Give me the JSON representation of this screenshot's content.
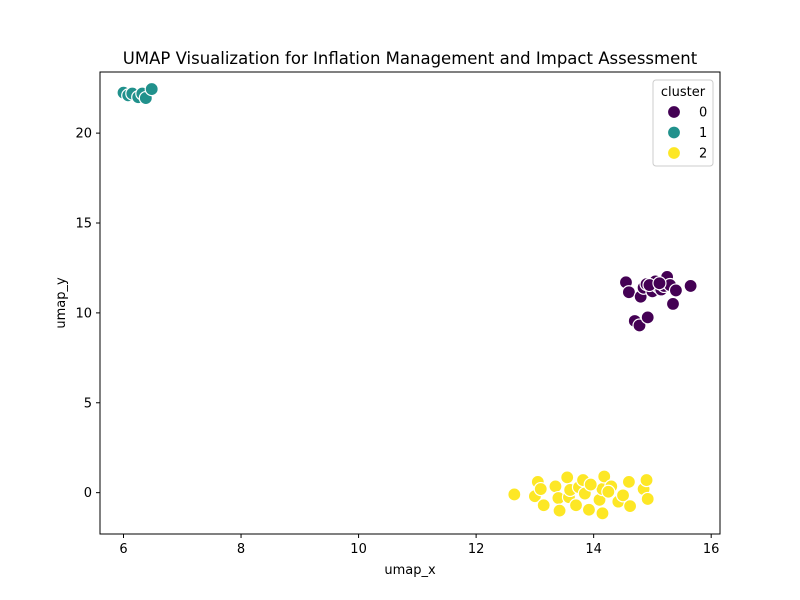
{
  "chart_data": {
    "type": "scatter",
    "title": "UMAP Visualization for Inflation Management and Impact Assessment",
    "xlabel": "umap_x",
    "ylabel": "umap_y",
    "xlim": [
      5.6,
      16.15
    ],
    "ylim": [
      -2.3,
      23.4
    ],
    "xticks": [
      6,
      8,
      10,
      12,
      14,
      16
    ],
    "yticks": [
      0,
      5,
      10,
      15,
      20
    ],
    "grid": false,
    "legend": {
      "title": "cluster",
      "placement": "top-right",
      "entries": [
        {
          "label": "0",
          "color": "#440154"
        },
        {
          "label": "1",
          "color": "#21918c"
        },
        {
          "label": "2",
          "color": "#fde725"
        }
      ]
    },
    "series": [
      {
        "name": "0",
        "color": "#440154",
        "points": [
          [
            14.55,
            11.7
          ],
          [
            14.6,
            11.15
          ],
          [
            14.8,
            10.9
          ],
          [
            14.85,
            11.4
          ],
          [
            14.9,
            11.6
          ],
          [
            15.0,
            11.2
          ],
          [
            15.05,
            11.75
          ],
          [
            15.1,
            11.45
          ],
          [
            15.15,
            11.3
          ],
          [
            15.2,
            11.5
          ],
          [
            15.25,
            12.0
          ],
          [
            15.3,
            11.55
          ],
          [
            15.35,
            10.5
          ],
          [
            15.4,
            11.25
          ],
          [
            15.65,
            11.5
          ],
          [
            14.7,
            9.55
          ],
          [
            14.78,
            9.3
          ],
          [
            14.92,
            9.75
          ],
          [
            14.95,
            11.55
          ],
          [
            15.12,
            11.65
          ]
        ]
      },
      {
        "name": "1",
        "color": "#21918c",
        "points": [
          [
            6.0,
            22.25
          ],
          [
            6.08,
            22.1
          ],
          [
            6.15,
            22.2
          ],
          [
            6.25,
            22.0
          ],
          [
            6.32,
            22.2
          ],
          [
            6.38,
            21.95
          ],
          [
            6.48,
            22.45
          ]
        ]
      },
      {
        "name": "2",
        "color": "#fde725",
        "points": [
          [
            12.65,
            -0.1
          ],
          [
            13.0,
            -0.2
          ],
          [
            13.05,
            0.6
          ],
          [
            13.1,
            0.2
          ],
          [
            13.15,
            -0.7
          ],
          [
            13.35,
            0.35
          ],
          [
            13.4,
            -0.3
          ],
          [
            13.42,
            -1.0
          ],
          [
            13.55,
            0.85
          ],
          [
            13.58,
            -0.25
          ],
          [
            13.6,
            0.15
          ],
          [
            13.7,
            -0.7
          ],
          [
            13.75,
            0.3
          ],
          [
            13.82,
            0.7
          ],
          [
            13.85,
            -0.05
          ],
          [
            13.92,
            -0.95
          ],
          [
            14.1,
            -0.4
          ],
          [
            14.15,
            0.2
          ],
          [
            14.18,
            0.9
          ],
          [
            14.15,
            -1.15
          ],
          [
            14.3,
            0.35
          ],
          [
            14.42,
            -0.5
          ],
          [
            14.5,
            -0.15
          ],
          [
            14.6,
            0.6
          ],
          [
            14.62,
            -0.75
          ],
          [
            14.85,
            0.2
          ],
          [
            14.9,
            0.7
          ],
          [
            14.92,
            -0.35
          ],
          [
            14.25,
            0.05
          ],
          [
            13.95,
            0.45
          ]
        ]
      }
    ]
  }
}
